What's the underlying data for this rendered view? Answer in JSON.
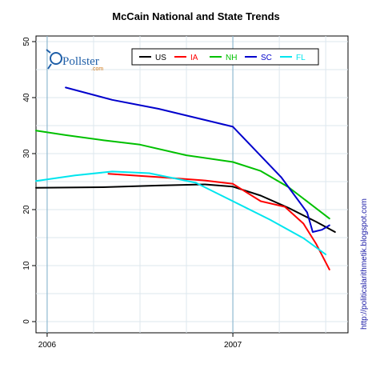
{
  "chart_data": {
    "type": "line",
    "title": "McCain National and State Trends",
    "xlabel": "",
    "ylabel": "",
    "ylim": [
      -2,
      51
    ],
    "xlim": [
      2005.94,
      2007.62
    ],
    "yticks": [
      0,
      10,
      20,
      30,
      40,
      50
    ],
    "xticks": [
      {
        "value": 2006,
        "label": "2006"
      },
      {
        "value": 2007,
        "label": "2007"
      }
    ],
    "legend_position": "top",
    "grid": true,
    "series": [
      {
        "name": "US",
        "color": "#000000",
        "x": [
          2005.94,
          2006.3,
          2006.6,
          2006.85,
          2007.0,
          2007.15,
          2007.3,
          2007.45,
          2007.55
        ],
        "y": [
          23.9,
          24.0,
          24.3,
          24.5,
          24.1,
          22.5,
          20.3,
          17.8,
          16.0
        ]
      },
      {
        "name": "IA",
        "color": "#ff0000",
        "x": [
          2006.33,
          2006.6,
          2006.85,
          2007.0,
          2007.15,
          2007.28,
          2007.38,
          2007.45,
          2007.52
        ],
        "y": [
          26.4,
          25.8,
          25.2,
          24.6,
          21.5,
          20.5,
          17.5,
          13.8,
          9.3
        ]
      },
      {
        "name": "NH",
        "color": "#00c000",
        "x": [
          2005.94,
          2006.1,
          2006.3,
          2006.5,
          2006.75,
          2007.0,
          2007.15,
          2007.3,
          2007.52
        ],
        "y": [
          34.1,
          33.3,
          32.4,
          31.6,
          29.7,
          28.5,
          26.9,
          24.0,
          18.4
        ]
      },
      {
        "name": "SC",
        "color": "#0000cc",
        "x": [
          2006.1,
          2006.35,
          2006.6,
          2007.0,
          2007.26,
          2007.4,
          2007.43,
          2007.48,
          2007.52
        ],
        "y": [
          41.8,
          39.6,
          38.0,
          34.8,
          25.8,
          19.5,
          16.0,
          16.4,
          17.2
        ]
      },
      {
        "name": "FL",
        "color": "#00e5ee",
        "x": [
          2005.94,
          2006.15,
          2006.35,
          2006.55,
          2006.8,
          2007.0,
          2007.2,
          2007.38,
          2007.5
        ],
        "y": [
          25.1,
          26.1,
          26.8,
          26.5,
          24.8,
          21.5,
          18.2,
          14.9,
          12.0
        ]
      }
    ]
  },
  "logo": {
    "name": "Pollster",
    "suffix": ".com"
  },
  "credit": "http://politicalarithmetik.blogspot.com"
}
